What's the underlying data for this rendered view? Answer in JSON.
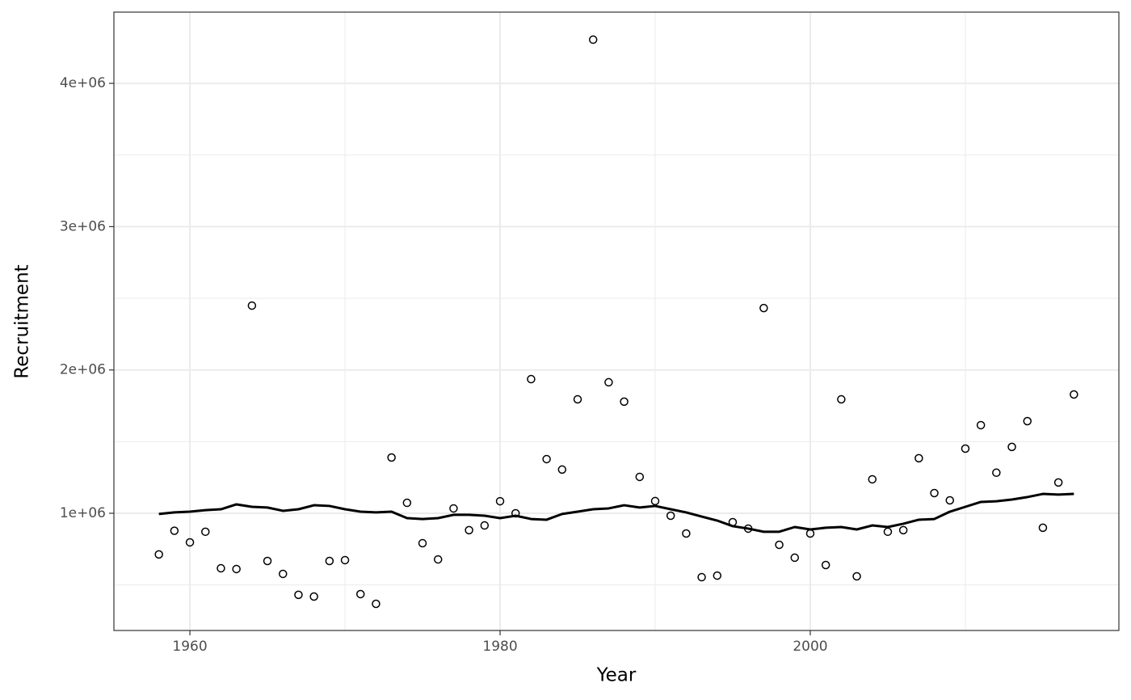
{
  "chart_data": {
    "type": "scatter",
    "x_label": "Year",
    "y_label": "Recruitment",
    "x": [
      1958,
      1959,
      1960,
      1961,
      1962,
      1963,
      1964,
      1965,
      1966,
      1967,
      1968,
      1969,
      1970,
      1971,
      1972,
      1973,
      1974,
      1975,
      1976,
      1977,
      1978,
      1979,
      1980,
      1981,
      1982,
      1983,
      1984,
      1985,
      1986,
      1987,
      1988,
      1989,
      1990,
      1991,
      1992,
      1993,
      1994,
      1995,
      1996,
      1997,
      1998,
      1999,
      2000,
      2001,
      2002,
      2003,
      2004,
      2005,
      2006,
      2007,
      2008,
      2009,
      2010,
      2011,
      2012,
      2013,
      2014,
      2015,
      2016,
      2017
    ],
    "series": [
      {
        "type": "scatter",
        "color": "#000000",
        "values": [
          713000,
          878000,
          797000,
          871000,
          616000,
          611000,
          2449000,
          667000,
          577000,
          431000,
          419000,
          667000,
          673000,
          436000,
          368000,
          1389000,
          1073000,
          791000,
          678000,
          1034000,
          882000,
          915000,
          1084000,
          1000000,
          1936000,
          1378000,
          1305000,
          1795000,
          4305000,
          1914000,
          1779000,
          1254000,
          1085000,
          983000,
          859000,
          554000,
          565000,
          938000,
          893000,
          2432000,
          780000,
          690000,
          859000,
          639000,
          1795000,
          560000,
          1237000,
          871000,
          882000,
          1384000,
          1141000,
          1090000,
          1451000,
          1615000,
          1283000,
          1463000,
          1643000,
          899000,
          1215000,
          1829000
        ]
      },
      {
        "type": "line",
        "color": "#000000",
        "values": [
          995000,
          1006000,
          1011000,
          1022000,
          1028000,
          1062000,
          1045000,
          1040000,
          1017000,
          1028000,
          1056000,
          1051000,
          1028000,
          1011000,
          1006000,
          1011000,
          966000,
          960000,
          966000,
          989000,
          989000,
          983000,
          966000,
          983000,
          960000,
          955000,
          995000,
          1011000,
          1028000,
          1034000,
          1056000,
          1040000,
          1051000,
          1028000,
          1006000,
          977000,
          949000,
          910000,
          893000,
          871000,
          871000,
          904000,
          887000,
          899000,
          904000,
          887000,
          915000,
          904000,
          927000,
          955000,
          960000,
          1011000,
          1045000,
          1079000,
          1084000,
          1096000,
          1113000,
          1135000,
          1130000,
          1135000
        ]
      }
    ],
    "xlim": [
      1955.1,
      2019.9
    ],
    "xticks": [
      1960,
      1980,
      2000
    ],
    "ylim": [
      182000,
      4497000
    ],
    "yticks": [
      {
        "value": 1000000,
        "label": "1e+06"
      },
      {
        "value": 2000000,
        "label": "2e+06"
      },
      {
        "value": 3000000,
        "label": "3e+06"
      },
      {
        "value": 4000000,
        "label": "4e+06"
      }
    ],
    "grid": true
  }
}
